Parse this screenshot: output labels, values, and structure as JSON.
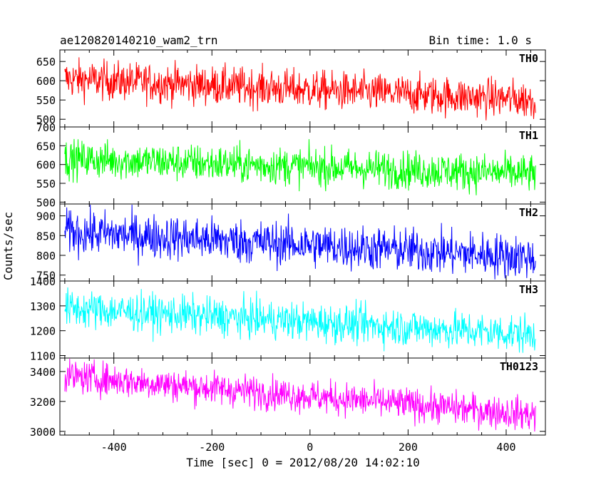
{
  "chart_data": {
    "type": "line",
    "title": "ae120820140210_wam2_trn",
    "bin_time": "Bin time: 1.0 s",
    "xlabel": "Time [sec] 0 = 2012/08/20 14:02:10",
    "ylabel": "Counts/sec",
    "xlim": [
      -510,
      480
    ],
    "x_ticks": [
      -400,
      -200,
      0,
      200,
      400
    ],
    "x_range_data": [
      -500,
      460
    ],
    "grid": false,
    "panels": [
      {
        "name": "TH0",
        "color": "#ff0000",
        "ylim": [
          480,
          680
        ],
        "yticks": [
          500,
          550,
          600,
          650
        ],
        "start": 605,
        "end": 550,
        "spread": 25
      },
      {
        "name": "TH1",
        "color": "#00ff00",
        "ylim": [
          495,
          700
        ],
        "yticks": [
          500,
          550,
          600,
          650,
          700
        ],
        "start": 615,
        "end": 575,
        "spread": 25
      },
      {
        "name": "TH2",
        "color": "#0000ff",
        "ylim": [
          735,
          930
        ],
        "yticks": [
          750,
          800,
          850,
          900
        ],
        "start": 860,
        "end": 795,
        "spread": 28
      },
      {
        "name": "TH3",
        "color": "#00ffff",
        "ylim": [
          1090,
          1400
        ],
        "yticks": [
          1100,
          1200,
          1300,
          1400
        ],
        "start": 1290,
        "end": 1185,
        "spread": 38
      },
      {
        "name": "TH0123",
        "color": "#ff00ff",
        "ylim": [
          2975,
          3490
        ],
        "yticks": [
          3000,
          3200,
          3400
        ],
        "start": 3370,
        "end": 3110,
        "spread": 55
      }
    ]
  }
}
